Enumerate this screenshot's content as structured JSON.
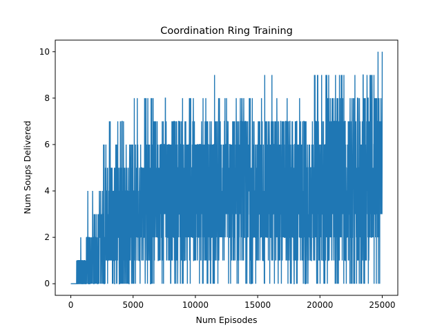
{
  "chart_data": {
    "type": "line",
    "title": "Coordination Ring Training",
    "xlabel": "Num Episodes",
    "ylabel": "Num Soups Delivered",
    "xlim": [
      -1250,
      26250
    ],
    "ylim": [
      -0.5,
      10.5
    ],
    "xticks": [
      0,
      5000,
      10000,
      15000,
      20000,
      25000
    ],
    "yticks": [
      0,
      2,
      4,
      6,
      8,
      10
    ],
    "xtick_labels": [
      "0",
      "5000",
      "10000",
      "15000",
      "20000",
      "25000"
    ],
    "ytick_labels": [
      "0",
      "2",
      "4",
      "6",
      "8",
      "10"
    ],
    "grid": false,
    "legend": "none",
    "series_color": "#1f77b4",
    "series": [
      {
        "x_start": 0,
        "x_end": 25000,
        "n_points": 25000,
        "envelope_x": [
          0,
          400,
          500,
          1000,
          1500,
          2000,
          2500,
          3000,
          3500,
          4000,
          4500,
          5000,
          6000,
          7000,
          8000,
          9000,
          10000,
          11000,
          11500,
          12000,
          13000,
          14000,
          15000,
          16000,
          17000,
          18000,
          19000,
          20000,
          21000,
          22000,
          23000,
          24000,
          25000
        ],
        "upper_envelope": [
          0,
          0,
          1,
          3,
          4,
          3,
          5,
          7,
          6,
          7,
          7,
          8,
          8,
          8,
          8,
          8,
          8,
          8,
          9,
          8,
          8,
          8,
          8,
          9,
          8,
          8,
          9,
          9,
          9,
          9,
          9,
          9,
          10
        ],
        "lower_envelope": [
          0,
          0,
          0,
          0,
          0,
          0,
          0,
          0,
          0,
          0,
          0,
          0,
          0,
          0,
          0,
          0,
          0,
          0,
          0,
          0,
          0,
          0,
          0,
          0,
          0,
          0,
          0,
          0,
          0,
          0,
          0,
          0,
          0
        ],
        "dense_band_low": [
          0,
          0,
          0,
          0,
          0,
          0,
          0,
          0,
          0,
          0,
          0,
          1,
          1,
          1,
          1,
          1,
          1,
          1,
          1,
          1,
          1,
          1,
          1,
          1,
          1,
          1,
          1,
          1,
          1,
          1,
          1,
          1,
          3
        ],
        "dense_band_high": [
          0,
          0,
          1,
          1,
          2,
          3,
          4,
          5,
          5,
          6,
          6,
          6,
          6,
          7,
          7,
          7,
          7,
          7,
          7,
          7,
          7,
          7,
          7,
          7,
          7,
          7,
          7,
          7,
          8,
          8,
          8,
          8,
          8
        ]
      }
    ]
  }
}
